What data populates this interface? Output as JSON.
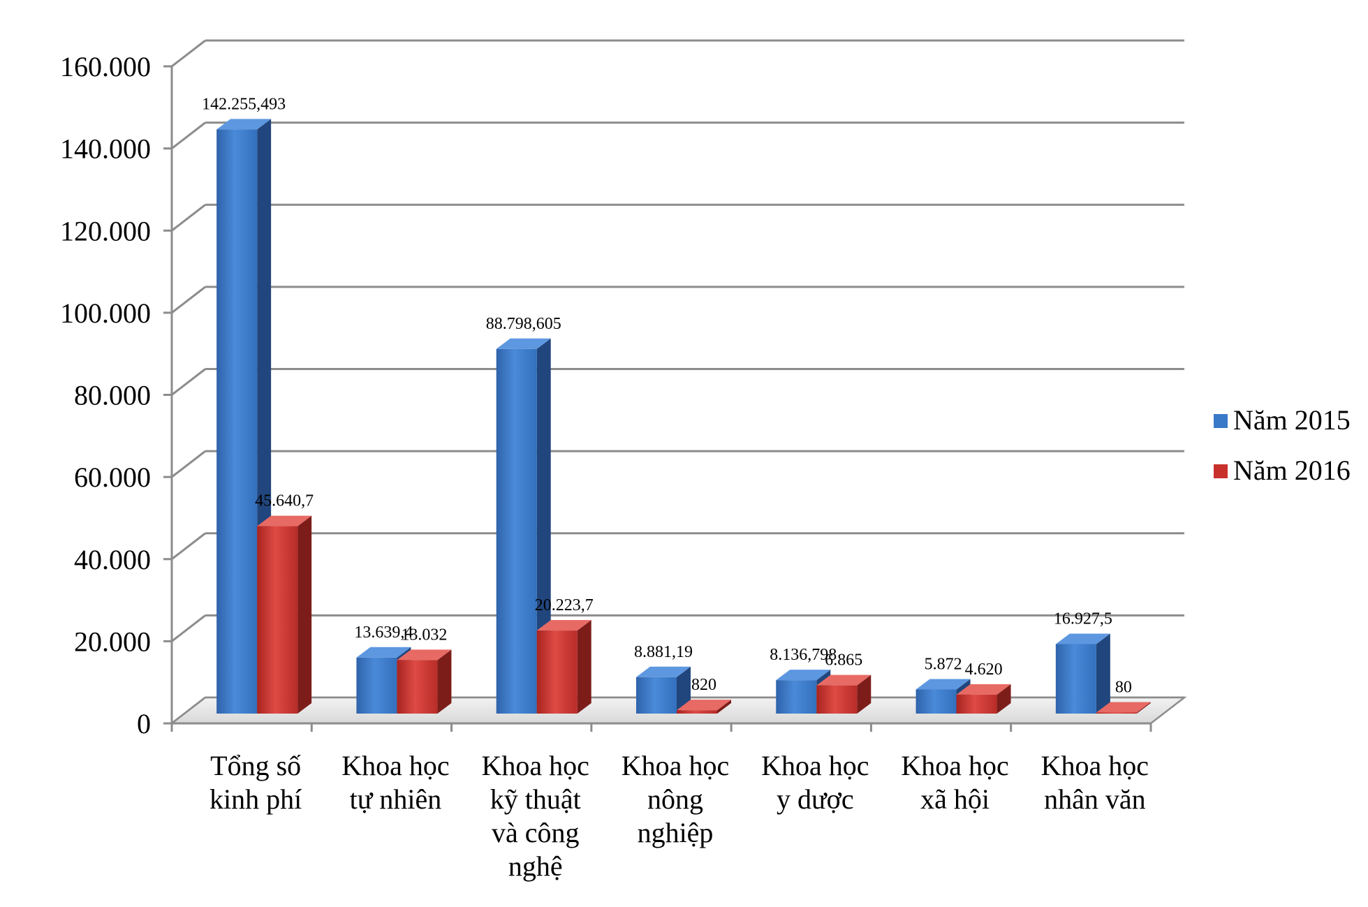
{
  "chart_data": {
    "type": "bar",
    "title": "",
    "xlabel": "",
    "ylabel": "",
    "ylim": [
      0,
      160000
    ],
    "yticks": [
      0,
      20000,
      40000,
      60000,
      80000,
      100000,
      120000,
      140000,
      160000
    ],
    "ytick_labels": [
      "0",
      "20.000",
      "40.000",
      "60.000",
      "80.000",
      "100.000",
      "120.000",
      "140.000",
      "160.000"
    ],
    "grid": true,
    "legend_position": "right",
    "categories": [
      [
        "Tổng số",
        "kinh phí"
      ],
      [
        "Khoa học",
        "tự nhiên"
      ],
      [
        "Khoa học",
        "kỹ thuật",
        "và công",
        "nghệ"
      ],
      [
        "Khoa học",
        "nông",
        "nghiệp"
      ],
      [
        "Khoa học",
        "y dược"
      ],
      [
        "Khoa học",
        "xã hội"
      ],
      [
        "Khoa học",
        "nhân văn"
      ]
    ],
    "series": [
      {
        "name": "Năm 2015",
        "color": "#3a78c8",
        "values": [
          142255.493,
          13639.4,
          88798.605,
          8881.19,
          8136.798,
          5872,
          16927.5
        ],
        "labels": [
          "142.255,493",
          "13.639,4",
          "88.798,605",
          "8.881,19",
          "8.136,798",
          "5.872",
          "16.927,5"
        ]
      },
      {
        "name": "Năm 2016",
        "color": "#c8302c",
        "values": [
          45640.7,
          13032,
          20223.7,
          820,
          6865,
          4620,
          80
        ],
        "labels": [
          "45.640,7",
          "13.032",
          "20.223,7",
          "820",
          "6.865",
          "4.620",
          "80"
        ]
      }
    ]
  }
}
